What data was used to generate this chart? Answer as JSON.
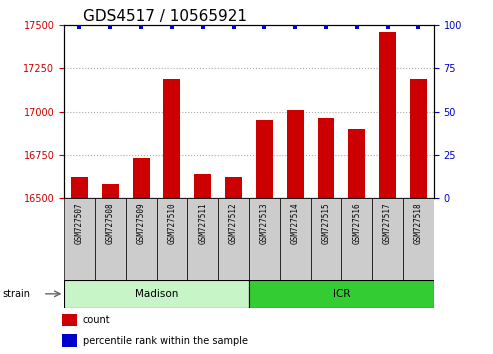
{
  "title": "GDS4517 / 10565921",
  "samples": [
    "GSM727507",
    "GSM727508",
    "GSM727509",
    "GSM727510",
    "GSM727511",
    "GSM727512",
    "GSM727513",
    "GSM727514",
    "GSM727515",
    "GSM727516",
    "GSM727517",
    "GSM727518"
  ],
  "counts": [
    16620,
    16580,
    16730,
    17185,
    16640,
    16620,
    16950,
    17010,
    16960,
    16900,
    17460,
    17190
  ],
  "percentiles": [
    99,
    99,
    99,
    99,
    99,
    99,
    99,
    99,
    99,
    99,
    99,
    99
  ],
  "ylim_left": [
    16500,
    17500
  ],
  "ylim_right": [
    0,
    100
  ],
  "yticks_left": [
    16500,
    16750,
    17000,
    17250,
    17500
  ],
  "yticks_right": [
    0,
    25,
    50,
    75,
    100
  ],
  "bar_color": "#cc0000",
  "dot_color": "#0000cc",
  "grid_color": "#aaaaaa",
  "madison_n": 6,
  "icr_n": 6,
  "madison_color": "#c8f5c8",
  "icr_color": "#33cc33",
  "tick_bg_color": "#cccccc",
  "legend_count_label": "count",
  "legend_pct_label": "percentile rank within the sample",
  "title_fontsize": 11,
  "axis_label_color_left": "#cc0000",
  "axis_label_color_right": "#0000cc"
}
